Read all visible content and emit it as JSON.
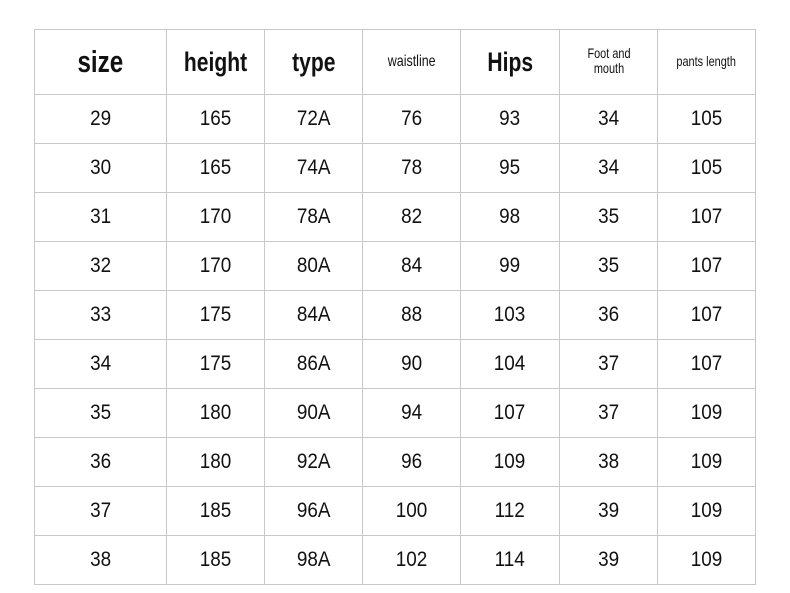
{
  "table": {
    "headers": [
      "size",
      "height",
      "type",
      "waistline",
      "Hips",
      "Foot and mouth",
      "pants length"
    ],
    "rows": [
      [
        "29",
        "165",
        "72A",
        "76",
        "93",
        "34",
        "105"
      ],
      [
        "30",
        "165",
        "74A",
        "78",
        "95",
        "34",
        "105"
      ],
      [
        "31",
        "170",
        "78A",
        "82",
        "98",
        "35",
        "107"
      ],
      [
        "32",
        "170",
        "80A",
        "84",
        "99",
        "35",
        "107"
      ],
      [
        "33",
        "175",
        "84A",
        "88",
        "103",
        "36",
        "107"
      ],
      [
        "34",
        "175",
        "86A",
        "90",
        "104",
        "37",
        "107"
      ],
      [
        "35",
        "180",
        "90A",
        "94",
        "107",
        "37",
        "109"
      ],
      [
        "36",
        "180",
        "92A",
        "96",
        "109",
        "38",
        "109"
      ],
      [
        "37",
        "185",
        "96A",
        "100",
        "112",
        "39",
        "109"
      ],
      [
        "38",
        "185",
        "98A",
        "102",
        "114",
        "39",
        "109"
      ]
    ]
  }
}
